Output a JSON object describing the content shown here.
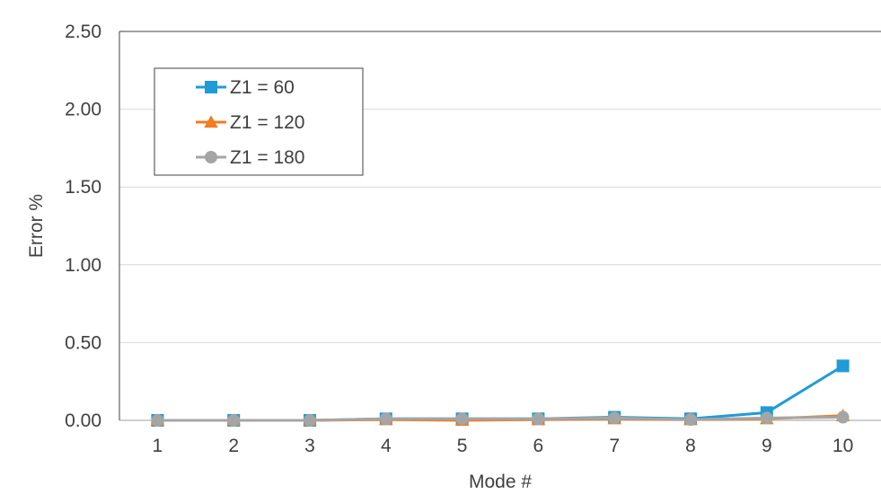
{
  "chart_data": {
    "type": "line",
    "xlabel": "Mode #",
    "ylabel": "Error %",
    "ylim": [
      0,
      2.5
    ],
    "yticks": [
      "0.00",
      "0.50",
      "1.00",
      "1.50",
      "2.00",
      "2.50"
    ],
    "categories": [
      "1",
      "2",
      "3",
      "4",
      "5",
      "6",
      "7",
      "8",
      "9",
      "10"
    ],
    "grid": "horizontal",
    "legend_position": "top-left",
    "series": [
      {
        "name": "Z1 = 60",
        "color": "#1f9bd7",
        "marker": "square",
        "values": [
          0.0,
          0.0,
          0.0,
          0.01,
          0.01,
          0.01,
          0.02,
          0.01,
          0.05,
          0.35
        ]
      },
      {
        "name": "Z1 = 120",
        "color": "#f47b20",
        "marker": "triangle",
        "values": [
          0.0,
          0.0,
          0.0,
          0.005,
          0.0,
          0.005,
          0.01,
          0.005,
          0.01,
          0.03
        ]
      },
      {
        "name": "Z1 = 180",
        "color": "#a5a5a5",
        "marker": "circle",
        "values": [
          0.0,
          0.0,
          0.0,
          0.01,
          0.01,
          0.01,
          0.015,
          0.005,
          0.015,
          0.02
        ]
      }
    ]
  }
}
